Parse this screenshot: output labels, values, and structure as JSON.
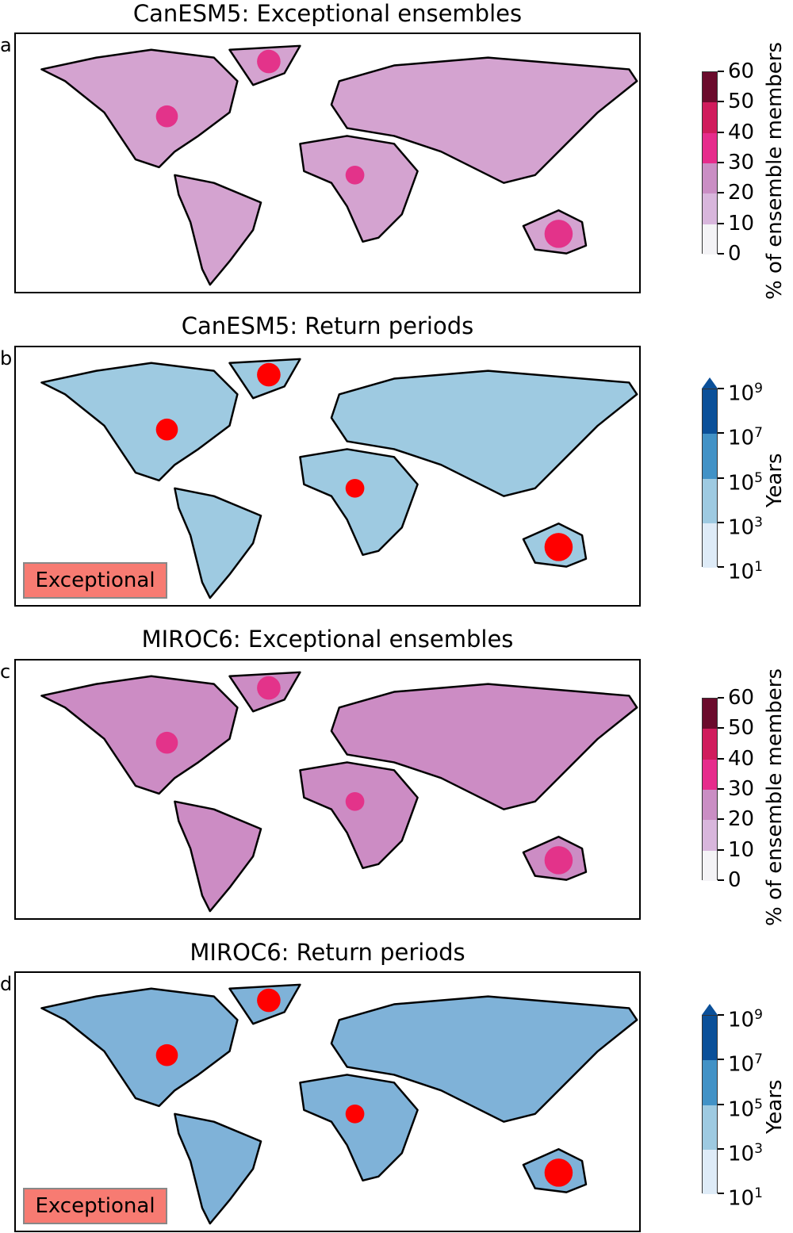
{
  "panels": [
    {
      "letter": "a",
      "title": "CanESM5: Exceptional ensembles",
      "type": "percent",
      "base": "#d4a3d0",
      "accent": "#e3338a"
    },
    {
      "letter": "b",
      "title": "CanESM5: Return periods",
      "type": "years",
      "base": "#9ecae1",
      "accent": "#ff0000",
      "badge": "Exceptional"
    },
    {
      "letter": "c",
      "title": "MIROC6: Exceptional ensembles",
      "type": "percent",
      "base": "#cc8cc4",
      "accent": "#e3338a"
    },
    {
      "letter": "d",
      "title": "MIROC6: Return periods",
      "type": "years",
      "base": "#7fb2d8",
      "accent": "#ff0000",
      "badge": "Exceptional"
    }
  ],
  "colorbars": {
    "percent": {
      "label": "% of ensemble members",
      "ticks": [
        "0",
        "10",
        "20",
        "30",
        "40",
        "50",
        "60"
      ],
      "colors": [
        "#f4f3f6",
        "#d8b6dc",
        "#ca8ec4",
        "#e62c8c",
        "#d01c5c",
        "#6b0b2c"
      ],
      "extend": "neither"
    },
    "years": {
      "label": "Years",
      "ticks": [
        "1",
        "3",
        "5",
        "7",
        "9"
      ],
      "tick_base": "10",
      "colors": [
        "#deebf7",
        "#9ecae1",
        "#4292c6",
        "#0b5099"
      ],
      "extend": "max"
    }
  }
}
